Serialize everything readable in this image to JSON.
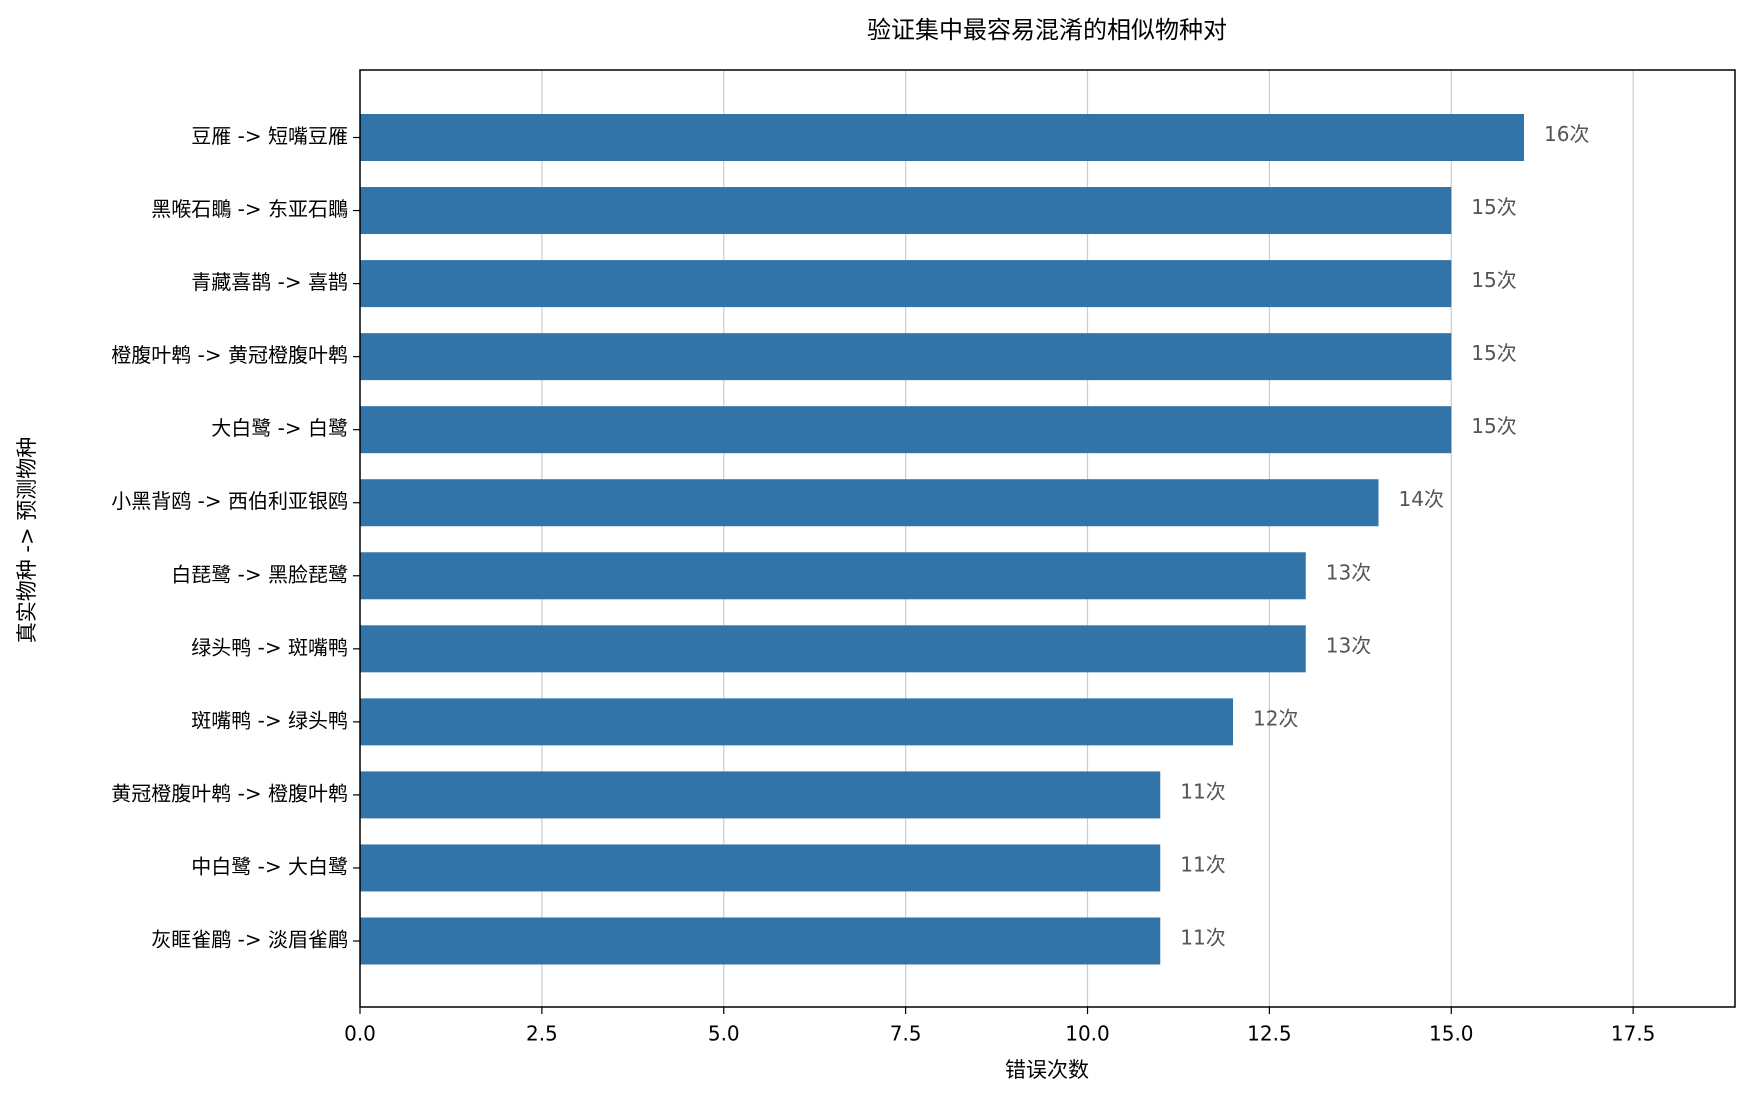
{
  "chart_data": {
    "type": "bar",
    "orientation": "horizontal",
    "title": "验证集中最容易混淆的相似物种对",
    "xlabel": "错误次数",
    "ylabel": "真实物种 -> 预测物种",
    "categories": [
      "豆雁 -> 短嘴豆雁",
      "黑喉石䳭 -> 东亚石䳭",
      "青藏喜鹊 -> 喜鹊",
      "橙腹叶鹎 -> 黄冠橙腹叶鹎",
      "大白鹭 -> 白鹭",
      "小黑背鸥 -> 西伯利亚银鸥",
      "白琵鹭 -> 黑脸琵鹭",
      "绿头鸭 -> 斑嘴鸭",
      "斑嘴鸭 -> 绿头鸭",
      "黄冠橙腹叶鹎 -> 橙腹叶鹎",
      "中白鹭 -> 大白鹭",
      "灰眶雀鹛 -> 淡眉雀鹛"
    ],
    "values": [
      16,
      15,
      15,
      15,
      15,
      14,
      13,
      13,
      12,
      11,
      11,
      11
    ],
    "value_labels": [
      "16次",
      "15次",
      "15次",
      "15次",
      "15次",
      "14次",
      "13次",
      "13次",
      "12次",
      "11次",
      "11次",
      "11次"
    ],
    "color": "#3274a8",
    "xlim": [
      0,
      18.9
    ],
    "xticks": [
      {
        "value": 0,
        "label": "0.0"
      },
      2.5,
      {
        "value": 5,
        "label": "5.0"
      },
      7.5,
      {
        "value": 10,
        "label": "10.0"
      },
      12.5,
      {
        "value": 15,
        "label": "15.0"
      },
      17.5
    ],
    "grid": true
  }
}
